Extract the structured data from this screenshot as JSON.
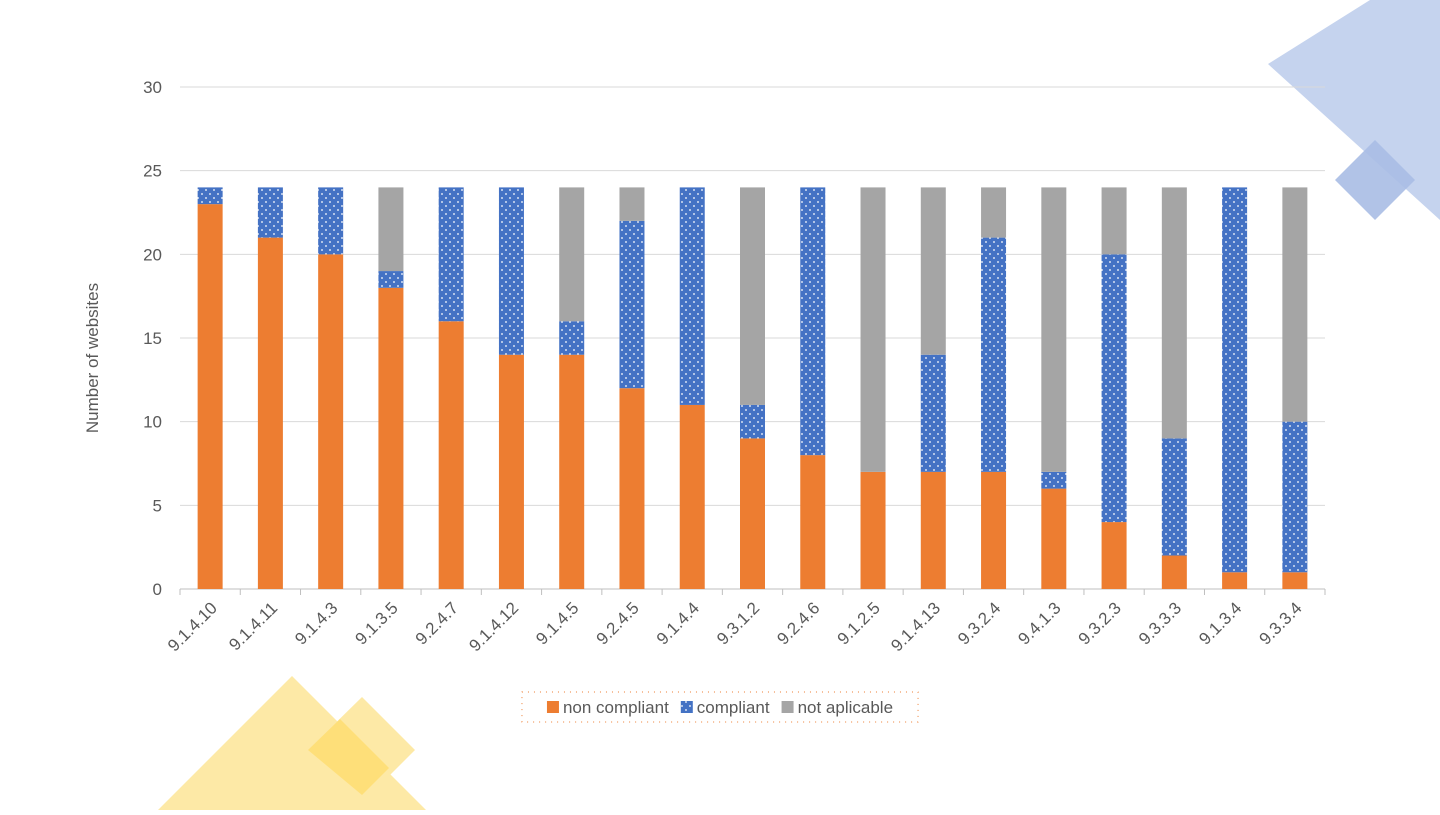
{
  "chart_data": {
    "type": "stacked_bar",
    "y_label": "Number of websites",
    "categories": [
      "9.1.4.10",
      "9.1.4.11",
      "9.1.4.3",
      "9.1.3.5",
      "9.2.4.7",
      "9.1.4.12",
      "9.1.4.5",
      "9.2.4.5",
      "9.1.4.4",
      "9.3.1.2",
      "9.2.4.6",
      "9.1.2.5",
      "9.1.4.13",
      "9.3.2.4",
      "9.4.1.3",
      "9.3.2.3",
      "9.3.3.3",
      "9.1.3.4",
      "9.3.3.4"
    ],
    "series": [
      {
        "name": "non compliant",
        "color": "#ed7d31",
        "pattern": "solid",
        "values": [
          23,
          21,
          20,
          18,
          16,
          14,
          14,
          12,
          11,
          9,
          8,
          7,
          7,
          7,
          6,
          4,
          2,
          1,
          1
        ]
      },
      {
        "name": "compliant",
        "color": "#4472c4",
        "pattern": "dots",
        "values": [
          1,
          3,
          4,
          1,
          8,
          10,
          2,
          10,
          13,
          2,
          16,
          0,
          7,
          14,
          1,
          16,
          7,
          23,
          9
        ]
      },
      {
        "name": "not aplicable",
        "color": "#a5a5a5",
        "pattern": "solid",
        "values": [
          0,
          0,
          0,
          5,
          0,
          0,
          8,
          2,
          0,
          13,
          0,
          17,
          10,
          3,
          17,
          4,
          15,
          0,
          14
        ]
      }
    ],
    "ylim": [
      0,
      30
    ],
    "yticks": [
      0,
      5,
      10,
      15,
      20,
      25,
      30
    ],
    "grid": true,
    "legend": "bottom"
  }
}
